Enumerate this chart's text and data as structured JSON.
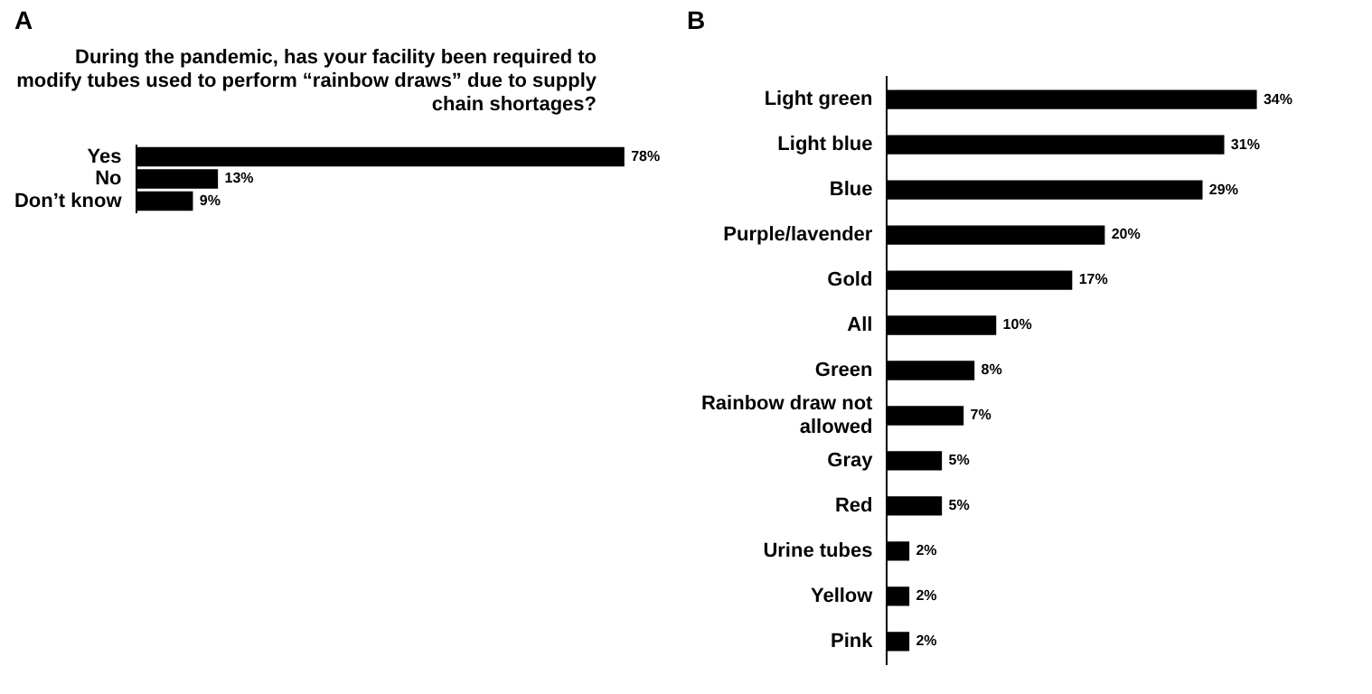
{
  "chart_data": [
    {
      "type": "bar",
      "orientation": "horizontal",
      "title": "During the pandemic, has your facility been required to modify tubes used to perform “rainbow draws” due to supply chain shortages?",
      "annotations": [
        "A"
      ],
      "categories": [
        "Yes",
        "No",
        "Don’t know"
      ],
      "values": [
        78,
        13,
        9
      ],
      "value_labels": [
        "78%",
        "13%",
        "9%"
      ],
      "color": "#000000",
      "tick_labels": "y"
    },
    {
      "type": "bar",
      "orientation": "horizontal",
      "annotations": [
        "B"
      ],
      "categories": [
        "Light green",
        "Light blue",
        "Blue",
        "Purple/lavender",
        "Gold",
        "All",
        "Green",
        "Rainbow draw not allowed",
        "Gray",
        "Red",
        "Urine tubes",
        "Yellow",
        "Pink"
      ],
      "values": [
        34,
        31,
        29,
        20,
        17,
        10,
        8,
        7,
        5,
        5,
        2,
        2,
        2
      ],
      "value_labels": [
        "34%",
        "31%",
        "29%",
        "20%",
        "17%",
        "10%",
        "8%",
        "7%",
        "5%",
        "5%",
        "2%",
        "2%",
        "2%"
      ],
      "color": "#000000",
      "tick_labels": "y"
    }
  ]
}
